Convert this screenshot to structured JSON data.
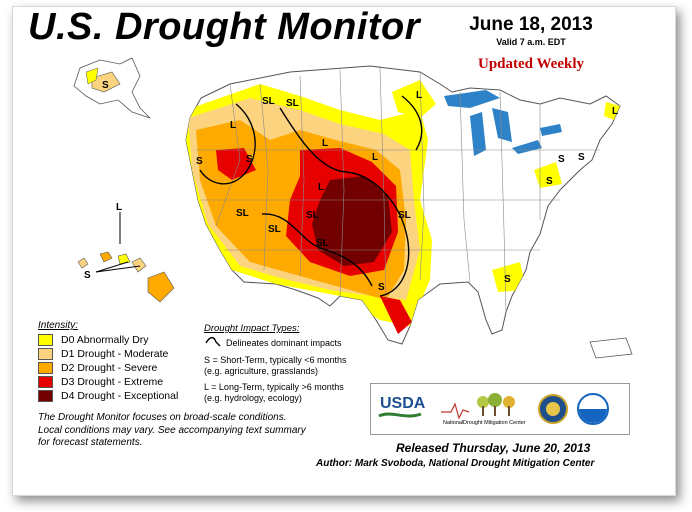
{
  "header": {
    "title": "U.S. Drought Monitor",
    "date": "June 18, 2013",
    "valid": "Valid 7 a.m. EDT",
    "updated": "Updated Weekly"
  },
  "legend": {
    "title": "Intensity:",
    "items": [
      {
        "label": "D0 Abnormally Dry",
        "color": "#ffff00"
      },
      {
        "label": "D1 Drought - Moderate",
        "color": "#fcd37f"
      },
      {
        "label": "D2 Drought - Severe",
        "color": "#ffaa00"
      },
      {
        "label": "D3 Drought - Extreme",
        "color": "#e60000"
      },
      {
        "label": "D4 Drought - Exceptional",
        "color": "#730000"
      }
    ]
  },
  "impacts": {
    "title": "Drought Impact Types:",
    "line": "Delineates dominant impacts",
    "short_1": "S = Short-Term, typically <6 months",
    "short_2": "(e.g. agriculture, grasslands)",
    "long_1": "L = Long-Term, typically >6 months",
    "long_2": "(e.g. hydrology, ecology)"
  },
  "note": {
    "line1": "The Drought Monitor focuses on broad-scale conditions.",
    "line2": "Local conditions may vary. See accompanying text summary",
    "line3": "for forecast statements."
  },
  "logos": {
    "usda": "USDA",
    "ndmc_1": "National",
    "ndmc_2": "Drought Mitigation Center"
  },
  "footer": {
    "released": "Released Thursday, June 20, 2013",
    "author": "Author: Mark Svoboda, National Drought Mitigation Center"
  },
  "map_labels": {
    "s": "S",
    "l": "L",
    "sl": "SL"
  },
  "colors": {
    "water": "#2e82c8",
    "outline": "#555555"
  }
}
